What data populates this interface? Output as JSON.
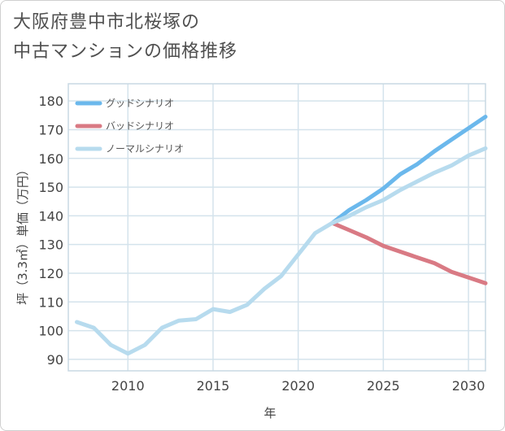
{
  "title_lines": [
    "大阪府豊中市北桜塚の",
    "中古マンションの価格推移"
  ],
  "chart_data": {
    "type": "line",
    "title": "大阪府豊中市北桜塚の中古マンションの価格推移",
    "xlabel": "年",
    "ylabel": "坪（3.3㎡）単価（万円）",
    "xlim": [
      2006.5,
      2031
    ],
    "ylim": [
      86,
      186
    ],
    "xticks": [
      2010,
      2015,
      2020,
      2025,
      2030
    ],
    "yticks": [
      90,
      100,
      110,
      120,
      130,
      140,
      150,
      160,
      170,
      180
    ],
    "grid": true,
    "legend_position": "top-left",
    "series": [
      {
        "name": "グッドシナリオ",
        "color": "#6bb8ec",
        "x": [
          2022,
          2023,
          2024,
          2025,
          2026,
          2027,
          2028,
          2029,
          2030,
          2031
        ],
        "y": [
          137.5,
          142,
          145.5,
          149.5,
          154.5,
          158,
          162.5,
          166.5,
          170.5,
          174.5
        ]
      },
      {
        "name": "バッドシナリオ",
        "color": "#d97a84",
        "x": [
          2022,
          2023,
          2024,
          2025,
          2026,
          2027,
          2028,
          2029,
          2030,
          2031
        ],
        "y": [
          137.5,
          135,
          132.5,
          129.5,
          127.5,
          125.5,
          123.5,
          120.5,
          118.5,
          116.5
        ]
      },
      {
        "name": "ノーマルシナリオ",
        "color": "#b7dbee",
        "x": [
          2007,
          2008,
          2009,
          2010,
          2011,
          2012,
          2013,
          2014,
          2015,
          2016,
          2017,
          2018,
          2019,
          2020,
          2021,
          2022,
          2023,
          2024,
          2025,
          2026,
          2027,
          2028,
          2029,
          2030,
          2031
        ],
        "y": [
          103,
          101,
          95,
          92,
          95,
          101,
          103.5,
          104,
          107.5,
          106.5,
          109,
          114.5,
          119,
          126.5,
          134,
          137.5,
          140,
          143,
          145.5,
          149,
          152,
          155,
          157.5,
          161,
          163.5
        ]
      }
    ]
  }
}
